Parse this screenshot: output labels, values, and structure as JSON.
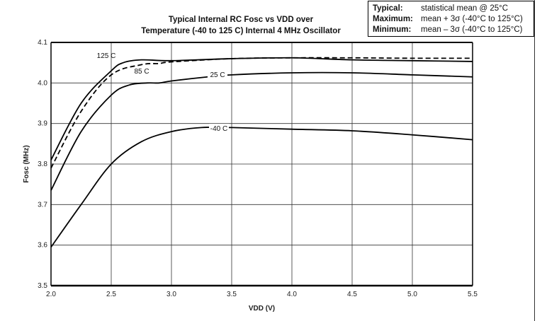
{
  "chart_data": {
    "type": "line",
    "title_lines": [
      "Typical Internal RC Fosc vs VDD over",
      "Temperature (-40 to 125 C) Internal 4 MHz Oscillator"
    ],
    "xlabel": "VDD (V)",
    "ylabel": "Fosc (MHz)",
    "xlim": [
      2.0,
      5.5
    ],
    "ylim": [
      3.5,
      4.1
    ],
    "xticks": [
      "2.0",
      "2.5",
      "3.0",
      "3.5",
      "4.0",
      "4.5",
      "5.0",
      "5.5"
    ],
    "yticks": [
      "3.5",
      "3.6",
      "3.7",
      "3.8",
      "3.9",
      "4.0",
      "4.1"
    ],
    "grid": true,
    "series": [
      {
        "name": "125 C",
        "style": "solid",
        "x": [
          2.0,
          2.25,
          2.5,
          2.6,
          2.75,
          3.0,
          3.5,
          4.0,
          4.5,
          5.0,
          5.5
        ],
        "y": [
          3.81,
          3.95,
          4.03,
          4.05,
          4.057,
          4.055,
          4.06,
          4.062,
          4.057,
          4.055,
          4.053
        ]
      },
      {
        "name": "85 C",
        "style": "dashed",
        "x": [
          2.0,
          2.25,
          2.5,
          2.75,
          2.9,
          3.0,
          3.5,
          4.0,
          4.5,
          5.0,
          5.5
        ],
        "y": [
          3.79,
          3.93,
          4.02,
          4.045,
          4.048,
          4.052,
          4.06,
          4.062,
          4.062,
          4.061,
          4.061
        ]
      },
      {
        "name": "25 C",
        "style": "solid",
        "x": [
          2.0,
          2.25,
          2.5,
          2.65,
          2.8,
          2.9,
          3.0,
          3.3,
          3.5,
          4.0,
          4.5,
          5.0,
          5.5
        ],
        "y": [
          3.735,
          3.88,
          3.97,
          3.995,
          4.0,
          4.0,
          4.005,
          4.015,
          4.02,
          4.025,
          4.025,
          4.02,
          4.015
        ]
      },
      {
        "name": "-40 C",
        "style": "solid",
        "x": [
          2.0,
          2.25,
          2.5,
          2.75,
          3.0,
          3.25,
          3.5,
          4.0,
          4.5,
          5.0,
          5.5
        ],
        "y": [
          3.595,
          3.7,
          3.8,
          3.855,
          3.88,
          3.89,
          3.89,
          3.886,
          3.882,
          3.872,
          3.86
        ]
      }
    ],
    "legend": [
      {
        "key": "Typical:",
        "value": "statistical mean @ 25°C"
      },
      {
        "key": "Maximum:",
        "value": "mean + 3σ (-40°C to 125°C)"
      },
      {
        "key": "Minimum:",
        "value": "mean – 3σ (-40°C to 125°C)"
      }
    ],
    "legend_placement": "top-right"
  }
}
